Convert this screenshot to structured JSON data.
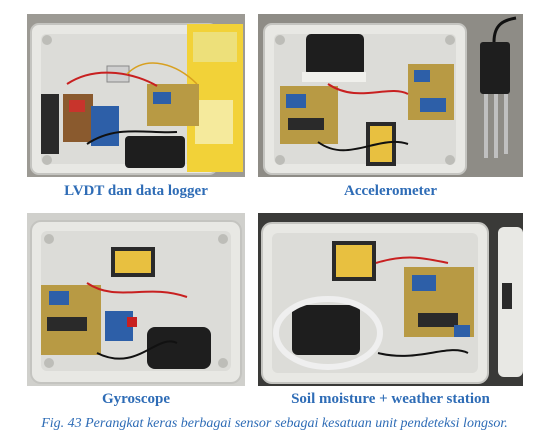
{
  "figure": {
    "panels": [
      {
        "caption": "LVDT dan data logger"
      },
      {
        "caption": "Accelerometer"
      },
      {
        "caption": "Gyroscope"
      },
      {
        "caption": "Soil moisture + weather station"
      }
    ],
    "caption": "Fig. 43 Perangkat keras berbagai sensor sebagai kesatuan unit pendeteksi longsor.",
    "colors": {
      "caption_text": "#2e6cb6",
      "enclosure": "#e6e6e2",
      "pcb_green": "#6e8a3a",
      "pcb_blue": "#2d5fa8",
      "adapter_black": "#1e1e1e",
      "terminal_block": "#2a2a2a"
    }
  }
}
